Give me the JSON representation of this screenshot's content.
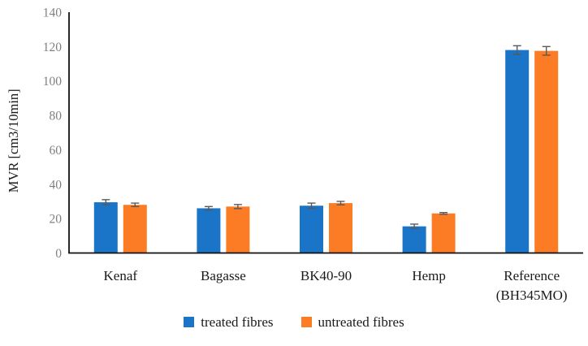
{
  "chart_data": {
    "type": "bar",
    "title": "",
    "xlabel": "",
    "ylabel": "MVR [cm3/10min]",
    "ylim": [
      0,
      140
    ],
    "yticks": [
      0,
      20,
      40,
      60,
      80,
      100,
      120,
      140
    ],
    "grid": false,
    "legend_position": "bottom",
    "categories": [
      [
        "Kenaf"
      ],
      [
        "Bagasse"
      ],
      [
        "BK40-90"
      ],
      [
        "Hemp"
      ],
      [
        "Reference",
        "(BH345MO)"
      ]
    ],
    "series": [
      {
        "name": "treated fibres",
        "color": "#1a74c8",
        "values": [
          29.5,
          26,
          27.5,
          15.5,
          118
        ],
        "errors": [
          1.5,
          1,
          1.5,
          1.3,
          2.5
        ]
      },
      {
        "name": "untreated fibres",
        "color": "#fc7c25",
        "values": [
          28,
          27,
          29,
          23,
          117.5
        ],
        "errors": [
          1,
          1.2,
          1,
          0.5,
          2.5
        ]
      }
    ],
    "colors": {
      "axis": "#111111",
      "tick_label": "#7f7f7f",
      "category_label": "#1a1a1a",
      "axis_title": "#1a1a1a",
      "error_bar": "#595959"
    }
  }
}
